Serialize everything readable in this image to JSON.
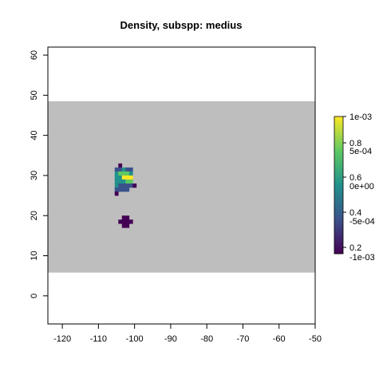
{
  "chart_data": {
    "type": "heatmap",
    "title": "Density, subspp: medius",
    "xlabel": "",
    "ylabel": "",
    "xlim": [
      -124,
      -50
    ],
    "ylim": [
      -7,
      62
    ],
    "x_ticks": [
      "-120",
      "-110",
      "-100",
      "-90",
      "-80",
      "-70",
      "-60",
      "-50"
    ],
    "y_ticks": [
      "0",
      "10",
      "20",
      "30",
      "40",
      "50",
      "60"
    ],
    "grid": false,
    "background_band": {
      "ymin": 5.8,
      "ymax": 48.5,
      "color": "#bebebe"
    },
    "colorbar": {
      "palette": [
        "#440154",
        "#3b528b",
        "#21918c",
        "#5ec962",
        "#fde725"
      ],
      "labels_left": [
        "0.2",
        "0.4",
        "0.6",
        "0.8",
        "1e-03"
      ],
      "labels_right": [
        "-1e-03",
        "-5e-04",
        "0e+00",
        "5e-04"
      ],
      "placement": "right"
    },
    "cells": [
      {
        "x": -104,
        "y": 32.5,
        "color": "#440154"
      },
      {
        "x": -105,
        "y": 31.5,
        "color": "#3b528b"
      },
      {
        "x": -104,
        "y": 31.5,
        "color": "#3b528b"
      },
      {
        "x": -103,
        "y": 31.5,
        "color": "#21918c"
      },
      {
        "x": -102,
        "y": 31.5,
        "color": "#3b528b"
      },
      {
        "x": -101,
        "y": 31.5,
        "color": "#3b528b"
      },
      {
        "x": -105,
        "y": 30.5,
        "color": "#21918c"
      },
      {
        "x": -104,
        "y": 30.5,
        "color": "#5ec962"
      },
      {
        "x": -103,
        "y": 30.5,
        "color": "#5ec962"
      },
      {
        "x": -102,
        "y": 30.5,
        "color": "#5ec962"
      },
      {
        "x": -101,
        "y": 30.5,
        "color": "#21918c"
      },
      {
        "x": -105,
        "y": 29.5,
        "color": "#21918c"
      },
      {
        "x": -104,
        "y": 29.5,
        "color": "#21918c"
      },
      {
        "x": -103,
        "y": 29.5,
        "color": "#fde725"
      },
      {
        "x": -102,
        "y": 29.5,
        "color": "#fde725"
      },
      {
        "x": -101,
        "y": 29.5,
        "color": "#fde725"
      },
      {
        "x": -105,
        "y": 28.5,
        "color": "#21918c"
      },
      {
        "x": -104,
        "y": 28.5,
        "color": "#21918c"
      },
      {
        "x": -103,
        "y": 28.5,
        "color": "#21918c"
      },
      {
        "x": -102,
        "y": 28.5,
        "color": "#5ec962"
      },
      {
        "x": -101,
        "y": 28.5,
        "color": "#5ec962"
      },
      {
        "x": -105,
        "y": 27.5,
        "color": "#21918c"
      },
      {
        "x": -104,
        "y": 27.5,
        "color": "#3b528b"
      },
      {
        "x": -103,
        "y": 27.5,
        "color": "#3b528b"
      },
      {
        "x": -102,
        "y": 27.5,
        "color": "#3b528b"
      },
      {
        "x": -101,
        "y": 27.5,
        "color": "#3b528b"
      },
      {
        "x": -100,
        "y": 27.5,
        "color": "#440154"
      },
      {
        "x": -105,
        "y": 26.5,
        "color": "#3b528b"
      },
      {
        "x": -104,
        "y": 26.5,
        "color": "#3b528b"
      },
      {
        "x": -103,
        "y": 26.5,
        "color": "#3b528b"
      },
      {
        "x": -102,
        "y": 26.5,
        "color": "#3b528b"
      },
      {
        "x": -105,
        "y": 25.5,
        "color": "#440154"
      },
      {
        "x": -103,
        "y": 19.5,
        "color": "#440154"
      },
      {
        "x": -102,
        "y": 19.5,
        "color": "#440154"
      },
      {
        "x": -104,
        "y": 18.5,
        "color": "#440154"
      },
      {
        "x": -103,
        "y": 18.5,
        "color": "#440154"
      },
      {
        "x": -102,
        "y": 18.5,
        "color": "#440154"
      },
      {
        "x": -101,
        "y": 18.5,
        "color": "#440154"
      },
      {
        "x": -103,
        "y": 17.5,
        "color": "#440154"
      },
      {
        "x": -102,
        "y": 17.5,
        "color": "#440154"
      }
    ]
  }
}
